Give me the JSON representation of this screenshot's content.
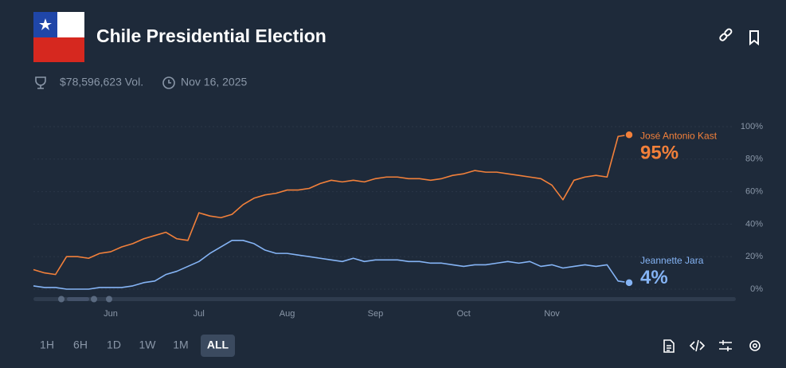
{
  "header": {
    "title": "Chile Presidential Election",
    "volume": "$78,596,623 Vol.",
    "date": "Nov 16, 2025"
  },
  "chart_data": {
    "type": "line",
    "categories": [
      null,
      null,
      null,
      null,
      null,
      null,
      null,
      "Jun",
      null,
      null,
      null,
      null,
      null,
      null,
      null,
      "Jul",
      null,
      null,
      null,
      null,
      null,
      null,
      null,
      "Aug",
      null,
      null,
      null,
      null,
      null,
      null,
      null,
      "Sep",
      null,
      null,
      null,
      null,
      null,
      null,
      null,
      "Oct",
      null,
      null,
      null,
      null,
      null,
      null,
      null,
      "Nov",
      null,
      null,
      null,
      null,
      null,
      null,
      null
    ],
    "series": [
      {
        "name": "José Antonio Kast",
        "color": "#f2803a",
        "values": [
          12,
          10,
          9,
          20,
          20,
          19,
          22,
          23,
          26,
          28,
          31,
          33,
          35,
          31,
          30,
          47,
          45,
          44,
          46,
          52,
          56,
          58,
          59,
          61,
          61,
          62,
          65,
          67,
          66,
          67,
          66,
          68,
          69,
          69,
          68,
          68,
          67,
          68,
          70,
          71,
          73,
          72,
          72,
          71,
          70,
          69,
          68,
          64,
          55,
          67,
          69,
          70,
          69,
          94,
          95
        ],
        "value_labels": [
          null,
          null,
          null,
          null,
          null,
          null,
          null,
          null,
          null,
          null,
          null,
          null,
          null,
          null,
          null,
          null,
          null,
          null,
          null,
          null,
          null,
          null,
          null,
          null,
          null,
          null,
          null,
          null,
          null,
          null,
          null,
          null,
          null,
          null,
          null,
          null,
          null,
          null,
          null,
          null,
          null,
          null,
          null,
          null,
          null,
          null,
          null,
          null,
          null,
          null,
          null,
          null,
          null,
          null,
          "95%"
        ]
      },
      {
        "name": "Jeannette Jara",
        "color": "#85b4f5",
        "values": [
          2,
          1,
          1,
          0,
          0,
          0,
          1,
          1,
          1,
          2,
          4,
          5,
          9,
          11,
          14,
          17,
          22,
          26,
          30,
          30,
          28,
          24,
          22,
          22,
          21,
          20,
          19,
          18,
          17,
          19,
          17,
          18,
          18,
          18,
          17,
          17,
          16,
          16,
          15,
          14,
          15,
          15,
          16,
          17,
          16,
          17,
          14,
          15,
          13,
          14,
          15,
          14,
          15,
          5,
          4
        ],
        "value_labels": [
          null,
          null,
          null,
          null,
          null,
          null,
          null,
          null,
          null,
          null,
          null,
          null,
          null,
          null,
          null,
          null,
          null,
          null,
          null,
          null,
          null,
          null,
          null,
          null,
          null,
          null,
          null,
          null,
          null,
          null,
          null,
          null,
          null,
          null,
          null,
          null,
          null,
          null,
          null,
          null,
          null,
          null,
          null,
          null,
          null,
          null,
          null,
          null,
          null,
          null,
          null,
          null,
          null,
          null,
          "4%"
        ]
      }
    ],
    "ylim": [
      0,
      100
    ],
    "yticks": [
      {
        "value": 0,
        "label": "0%"
      },
      {
        "value": 20,
        "label": "20%"
      },
      {
        "value": 40,
        "label": "40%"
      },
      {
        "value": 60,
        "label": "60%"
      },
      {
        "value": 80,
        "label": "80%"
      },
      {
        "value": 100,
        "label": "100%"
      }
    ]
  },
  "controls": {
    "ranges": [
      "1H",
      "6H",
      "1D",
      "1W",
      "1M",
      "ALL"
    ],
    "active": 5
  }
}
